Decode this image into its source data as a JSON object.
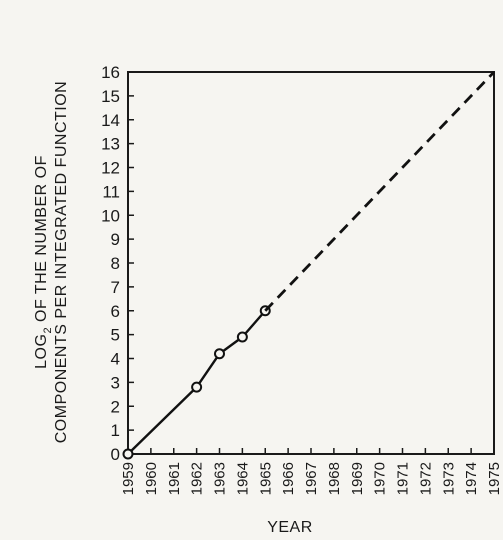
{
  "chart_data": {
    "type": "line",
    "xlabel": "YEAR",
    "ylabel_line1": "LOG",
    "ylabel_subscript": "2",
    "ylabel_line1_rest": " OF THE NUMBER OF",
    "ylabel_line2": "COMPONENTS PER INTEGRATED FUNCTION",
    "xlim": [
      1959,
      1975
    ],
    "ylim": [
      0,
      16
    ],
    "x_ticks": [
      "1959",
      "1960",
      "1961",
      "1962",
      "1963",
      "1964",
      "1965",
      "1966",
      "1967",
      "1968",
      "1969",
      "1970",
      "1971",
      "1972",
      "1973",
      "1974",
      "1975"
    ],
    "y_ticks": [
      "0",
      "1",
      "2",
      "3",
      "4",
      "5",
      "6",
      "7",
      "8",
      "9",
      "10",
      "11",
      "12",
      "13",
      "14",
      "15",
      "16"
    ],
    "grid": false,
    "series": [
      {
        "style": "solid",
        "markers": true,
        "x": [
          1959,
          1962,
          1963,
          1964,
          1965
        ],
        "y": [
          0,
          2.8,
          4.2,
          4.9,
          6
        ]
      },
      {
        "style": "dashed",
        "markers": false,
        "x": [
          1965,
          1975
        ],
        "y": [
          6,
          16
        ]
      }
    ]
  }
}
